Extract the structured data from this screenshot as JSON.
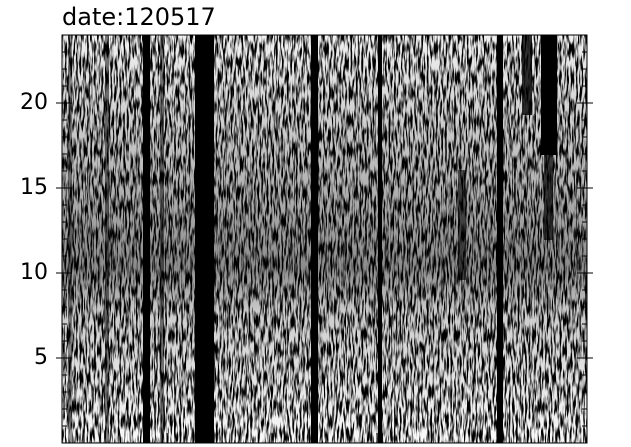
{
  "chart_data": {
    "type": "heatmap",
    "title": "date:120517",
    "ylim": [
      0,
      24
    ],
    "yticks": [
      5,
      10,
      15,
      20
    ]
  }
}
